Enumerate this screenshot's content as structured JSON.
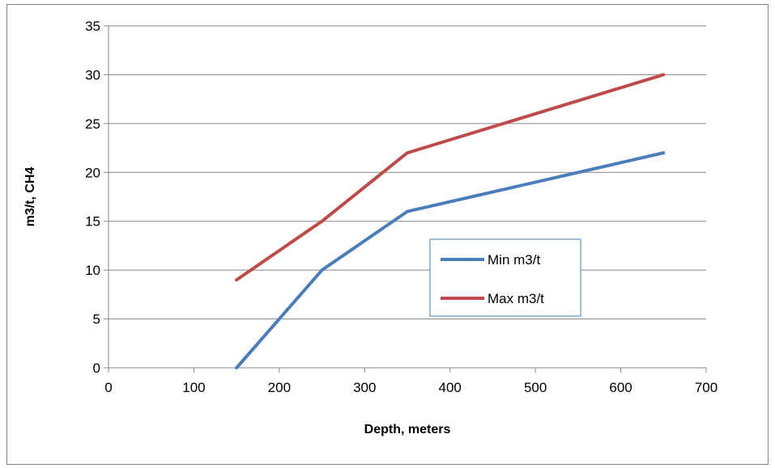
{
  "chart_data": {
    "type": "line",
    "title": "",
    "xlabel": "Depth, meters",
    "ylabel": "m3/t, CH4",
    "xlim": [
      0,
      700
    ],
    "ylim": [
      0,
      35
    ],
    "xticks": [
      0,
      100,
      200,
      300,
      400,
      500,
      600,
      700
    ],
    "yticks": [
      0,
      5,
      10,
      15,
      20,
      25,
      30,
      35
    ],
    "grid": "horizontal",
    "legend_position": "center-right",
    "series": [
      {
        "name": "Min m3/t",
        "color": "#4a7ebb",
        "x": [
          150,
          250,
          350,
          650
        ],
        "y": [
          0,
          10,
          16,
          22
        ]
      },
      {
        "name": "Max m3/t",
        "color": "#be4b48",
        "x": [
          150,
          250,
          350,
          650
        ],
        "y": [
          9,
          15,
          22,
          30
        ]
      }
    ]
  }
}
